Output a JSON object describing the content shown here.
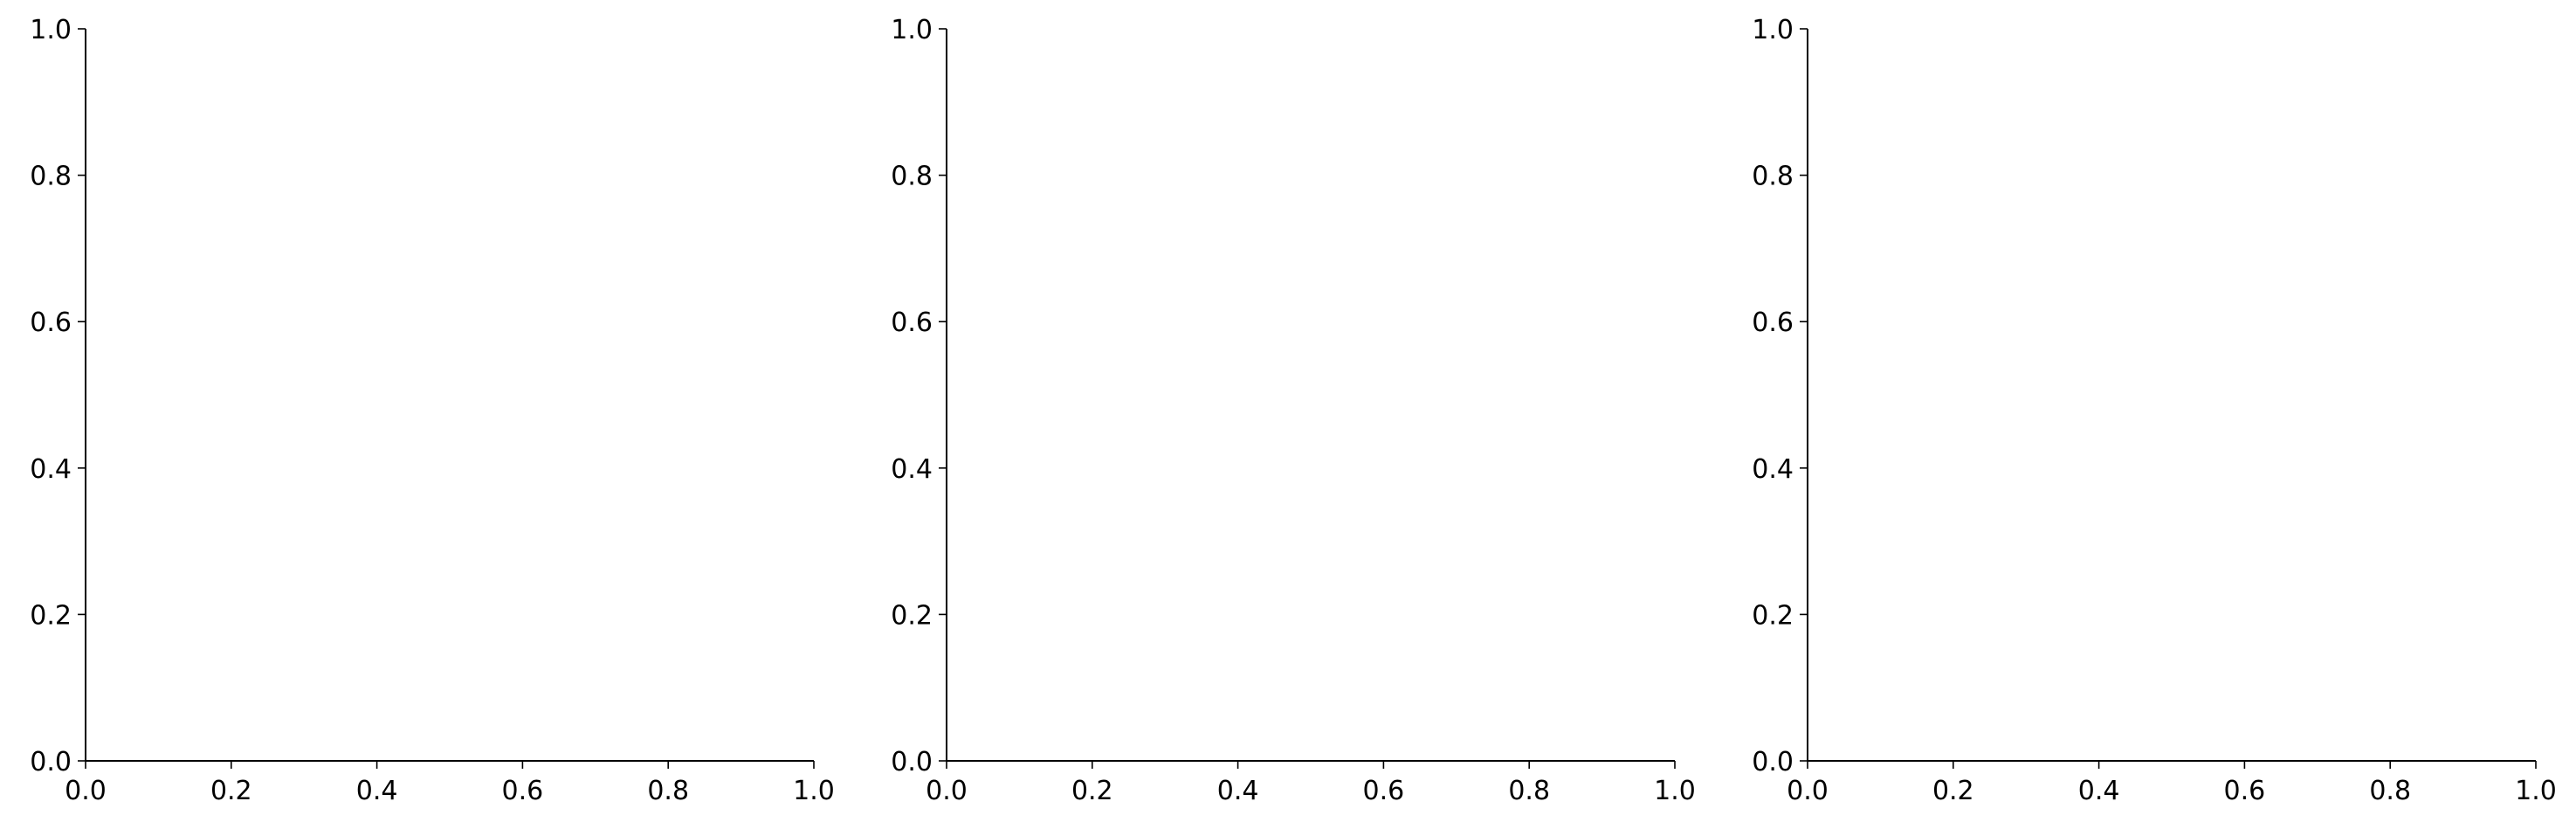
{
  "chart_data": [
    {
      "type": "scatter",
      "title": "",
      "xlabel": "",
      "ylabel": "",
      "xlim": [
        0,
        1
      ],
      "ylim": [
        0,
        1
      ],
      "xticks": [
        "0.0",
        "0.2",
        "0.4",
        "0.6",
        "0.8",
        "1.0"
      ],
      "yticks": [
        "0.0",
        "0.2",
        "0.4",
        "0.6",
        "0.8",
        "1.0"
      ],
      "series": [],
      "grid": false
    },
    {
      "type": "scatter",
      "title": "",
      "xlabel": "",
      "ylabel": "",
      "xlim": [
        0,
        1
      ],
      "ylim": [
        0,
        1
      ],
      "xticks": [
        "0.0",
        "0.2",
        "0.4",
        "0.6",
        "0.8",
        "1.0"
      ],
      "yticks": [
        "0.0",
        "0.2",
        "0.4",
        "0.6",
        "0.8",
        "1.0"
      ],
      "series": [],
      "grid": false
    },
    {
      "type": "scatter",
      "title": "",
      "xlabel": "",
      "ylabel": "",
      "xlim": [
        0,
        1
      ],
      "ylim": [
        0,
        1
      ],
      "xticks": [
        "0.0",
        "0.2",
        "0.4",
        "0.6",
        "0.8",
        "1.0"
      ],
      "yticks": [
        "0.0",
        "0.2",
        "0.4",
        "0.6",
        "0.8",
        "1.0"
      ],
      "series": [],
      "grid": false
    }
  ]
}
